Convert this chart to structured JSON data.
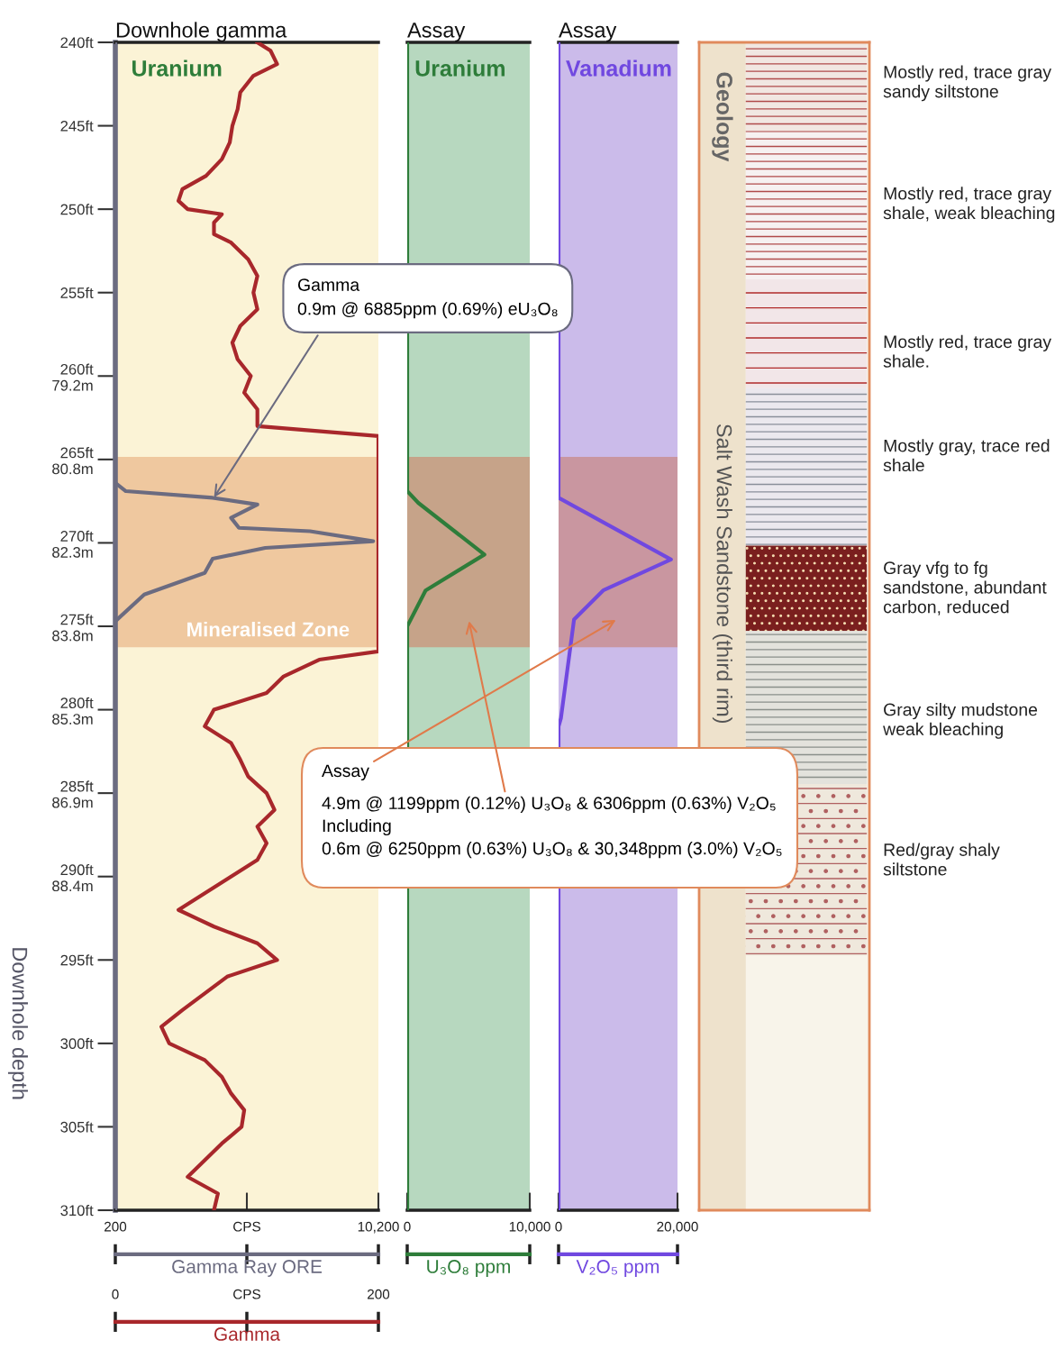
{
  "chart_data": [
    {
      "type": "line",
      "title": "Downhole gamma",
      "subtitle": "Uranium",
      "ylabel": "Downhole depth",
      "xlabel": "Gamma Ray ORE",
      "x2label": "Gamma",
      "orientation": "horizontal",
      "ylim": [
        310,
        240
      ],
      "yticks": [
        {
          "value": 240,
          "label": "240ft"
        },
        {
          "value": 245,
          "label": "245ft"
        },
        {
          "value": 250,
          "label": "250ft"
        },
        {
          "value": 255,
          "label": "255ft"
        },
        {
          "value": 260,
          "label": "260ft\n79.2m"
        },
        {
          "value": 265,
          "label": "265ft\n80.8m"
        },
        {
          "value": 270,
          "label": "270ft\n82.3m"
        },
        {
          "value": 275,
          "label": "275ft\n83.8m"
        },
        {
          "value": 280,
          "label": "280ft\n85.3m"
        },
        {
          "value": 285,
          "label": "285ft\n86.9m"
        },
        {
          "value": 290,
          "label": "290ft\n88.4m"
        },
        {
          "value": 295,
          "label": "295ft"
        },
        {
          "value": 300,
          "label": "300ft"
        },
        {
          "value": 305,
          "label": "305ft"
        },
        {
          "value": 310,
          "label": "310ft"
        }
      ],
      "xlim": [
        200,
        10200
      ],
      "xticks": [
        200,
        {
          "value": 5200,
          "label": "CPS"
        },
        {
          "value": 10200,
          "label": "10,200"
        }
      ],
      "x2lim": [
        0,
        200
      ],
      "x2ticks": [
        0,
        {
          "value": 100,
          "label": "CPS"
        },
        200
      ],
      "series": [
        {
          "color": "#6b6b80",
          "x": [
            240,
            266.4,
            266.9,
            267.3,
            267.7,
            268.5,
            269.1,
            269.3,
            269.9,
            270.3,
            270.95,
            271.8,
            273.1,
            274.7,
            310
          ],
          "values": [
            200,
            200,
            600,
            3900,
            5600,
            4600,
            4900,
            7600,
            10000,
            5900,
            3900,
            3600,
            1300,
            200,
            200
          ]
        },
        {
          "color": "#a8272b",
          "axis": "x2",
          "x": [
            240,
            240.5,
            241.3,
            242,
            243,
            244,
            245,
            246,
            247,
            248,
            248.8,
            249.5,
            250,
            250.3,
            250.8,
            251.5,
            252,
            253,
            254,
            255,
            256,
            257,
            258,
            259,
            260,
            261,
            262,
            263,
            263.6,
            276.5,
            277,
            278,
            279,
            280,
            281,
            282,
            283,
            284,
            285,
            286,
            287,
            288,
            289,
            290,
            291,
            292,
            293,
            294,
            295,
            296,
            297,
            298,
            299,
            300,
            301,
            302,
            303,
            304,
            305,
            306,
            307,
            308,
            309,
            310
          ],
          "values": [
            108,
            118,
            123,
            105,
            95,
            93,
            89,
            87,
            81,
            69,
            51,
            48,
            55,
            81,
            75,
            75,
            88,
            101,
            108,
            105,
            108,
            95,
            89,
            93,
            103,
            98,
            108,
            108,
            200,
            200,
            155,
            128,
            115,
            75,
            68,
            88,
            95,
            101,
            115,
            121,
            108,
            115,
            108,
            88,
            68,
            48,
            75,
            108,
            123,
            85,
            68,
            51,
            35,
            41,
            68,
            81,
            88,
            98,
            96,
            81,
            68,
            55,
            78,
            75
          ]
        }
      ],
      "bands": [
        {
          "axis": "y",
          "from": 264.85,
          "to": 276.25,
          "label": "Mineralised Zone",
          "color": "#ecbf95"
        }
      ],
      "annotations": [
        {
          "text": "Gamma\n0.9m @ 6885ppm (0.69%) eU₃O₈",
          "x": 3900,
          "y": 267.4
        },
        "Assay",
        "4.9m @ 1199ppm (0.12%) U₃O₈ & 6306ppm (0.63%) V₂O₅\nIncluding\n0.6m @ 6250ppm (0.63%) U₃O₈ & 30,348ppm (3.0%) V₂O₅"
      ]
    },
    {
      "type": "line",
      "title": "Assay",
      "subtitle": "Uranium",
      "xlabel": "U₃O₈ ppm",
      "orientation": "horizontal",
      "tick_labels": "x",
      "ylim": [
        310,
        240
      ],
      "xlim": [
        0,
        10000
      ],
      "xticks": [
        0,
        {
          "value": 10000,
          "label": "10,000"
        }
      ],
      "series": [
        {
          "color": "#2e7d3a",
          "x": [
            240,
            266.9,
            267.6,
            270.7,
            272.85,
            275.0,
            310
          ],
          "values": [
            0,
            0,
            900,
            6300,
            1500,
            0,
            0
          ]
        }
      ],
      "bands": [
        {
          "axis": "y",
          "from": 264.85,
          "to": 276.25,
          "color": "#c99a7f"
        }
      ]
    },
    {
      "type": "line",
      "title": "Assay",
      "subtitle": "Vanadium",
      "xlabel": "V₂O₅ ppm",
      "orientation": "horizontal",
      "tick_labels": "x",
      "ylim": [
        310,
        240
      ],
      "xlim": [
        0,
        20000
      ],
      "xticks": [
        0,
        {
          "value": 20000,
          "label": "20,000"
        }
      ],
      "series": [
        {
          "color": "#7048e0",
          "x": [
            240,
            267.3,
            271.0,
            272.85,
            274.6,
            280.5,
            281,
            310
          ],
          "values": [
            0,
            0,
            18900,
            7500,
            2600,
            400,
            0,
            0
          ]
        }
      ],
      "bands": [
        {
          "axis": "y",
          "from": 264.85,
          "to": 276.25,
          "color": "#c98f93"
        }
      ]
    },
    {
      "type": "other",
      "title": "Geology",
      "subtitle": "Salt Wash Sandstone (third rim)",
      "annotations": [
        "Mostly red, trace gray\nsandy siltstone",
        "Mostly red, trace gray\nshale, weak bleaching",
        "Mostly red, trace gray\nshale.",
        "Mostly gray, trace red\nshale",
        "Gray vfg to fg\nsandstone, abundant\ncarbon, reduced",
        "Gray silty mudstone\nweak bleaching",
        "Red/gray shaly\nsiltstone"
      ]
    }
  ]
}
